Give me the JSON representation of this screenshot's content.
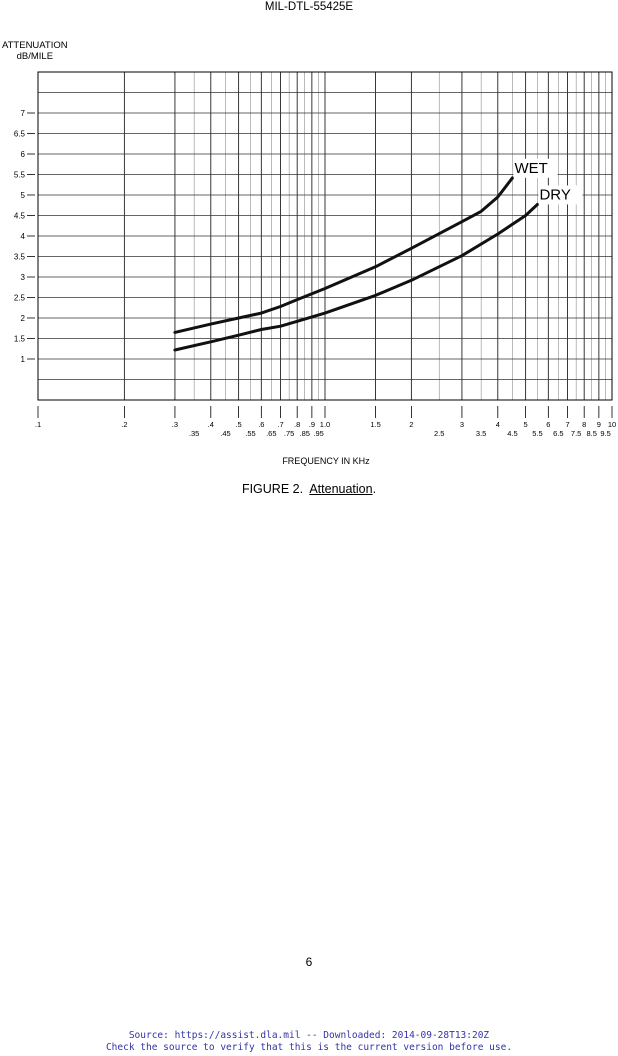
{
  "document": {
    "header": "MIL-DTL-55425E",
    "caption_prefix": "FIGURE 2.",
    "caption_title": "Attenuation",
    "caption_suffix": ".",
    "page_number": "6",
    "footer_line1": "Source: https://assist.dla.mil -- Downloaded: 2014-09-28T13:20Z",
    "footer_line2": "Check the source to verify that this is the current version before use."
  },
  "chart_data": {
    "type": "line",
    "ylabel_line1": "ATTENUATION",
    "ylabel_line2": "dB/MILE",
    "xlabel": "FREQUENCY IN KHz",
    "xscale": "log",
    "xlim": [
      0.1,
      10
    ],
    "ylim": [
      0,
      8
    ],
    "grid": true,
    "y_ticks": [
      1,
      1.5,
      2,
      2.5,
      3,
      3.5,
      4,
      4.5,
      5,
      5.5,
      6,
      6.5,
      7
    ],
    "y_tick_labels": [
      "1",
      "1.5",
      "2",
      "2.5",
      "3",
      "3.5",
      "4",
      "4.5",
      "5",
      "5.5",
      "6",
      "6.5",
      "7"
    ],
    "x_ticks_major": [
      0.1,
      0.2,
      0.3,
      0.4,
      0.5,
      0.6,
      0.7,
      0.8,
      0.9,
      1.0,
      1.5,
      2,
      3,
      4,
      5,
      6,
      7,
      8,
      9,
      10
    ],
    "x_tick_labels_major": [
      ".1",
      ".2",
      ".3",
      ".4",
      ".5",
      ".6",
      ".7",
      ".8",
      ".9",
      "1.0",
      "1.5",
      "2",
      "3",
      "4",
      "5",
      "6",
      "7",
      "8",
      "9",
      "10"
    ],
    "x_ticks_minor": [
      0.35,
      0.45,
      0.55,
      0.65,
      0.75,
      0.85,
      0.95,
      2.5,
      3.5,
      4.5,
      5.5,
      6.5,
      7.5,
      8.5,
      9.5
    ],
    "x_tick_labels_minor": [
      ".35",
      ".45",
      ".55",
      ".65",
      ".75",
      ".85",
      ".95",
      "2.5",
      "3.5",
      "4.5",
      "5.5",
      "6.5",
      "7.5",
      "8.5",
      "9.5"
    ],
    "x_grid_lines": [
      0.1,
      0.2,
      0.3,
      0.35,
      0.4,
      0.45,
      0.5,
      0.55,
      0.6,
      0.65,
      0.7,
      0.75,
      0.8,
      0.85,
      0.9,
      0.95,
      1.0,
      1.5,
      2,
      2.5,
      3,
      3.5,
      4,
      4.5,
      5,
      5.5,
      6,
      6.5,
      7,
      7.5,
      8,
      8.5,
      9,
      9.5,
      10
    ],
    "y_grid_lines": [
      0,
      0.5,
      1,
      1.5,
      2,
      2.5,
      3,
      3.5,
      4,
      4.5,
      5,
      5.5,
      6,
      6.5,
      7,
      7.5,
      8
    ],
    "series": [
      {
        "name": "WET",
        "x": [
          0.3,
          0.4,
          0.5,
          0.6,
          0.7,
          0.8,
          1.0,
          1.5,
          2.0,
          3.0,
          3.5,
          4.0,
          4.5
        ],
        "y": [
          1.65,
          1.85,
          2.0,
          2.12,
          2.28,
          2.45,
          2.72,
          3.25,
          3.7,
          4.35,
          4.6,
          4.95,
          5.42
        ]
      },
      {
        "name": "DRY",
        "x": [
          0.3,
          0.4,
          0.5,
          0.6,
          0.7,
          0.8,
          1.0,
          1.5,
          2.0,
          3.0,
          4.0,
          5.0,
          5.5
        ],
        "y": [
          1.22,
          1.42,
          1.58,
          1.72,
          1.8,
          1.92,
          2.12,
          2.55,
          2.92,
          3.52,
          4.05,
          4.5,
          4.77
        ]
      }
    ]
  }
}
